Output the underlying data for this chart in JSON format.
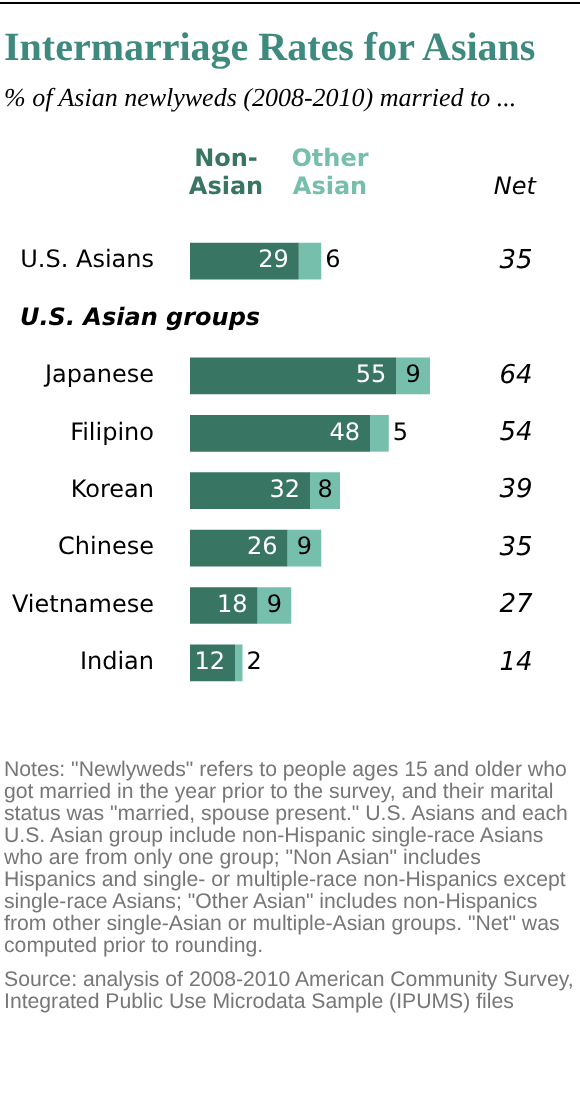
{
  "chart_data": {
    "type": "bar",
    "orientation": "horizontal",
    "stacked": true,
    "title": "Intermarriage Rates for Asians",
    "subtitle": "% of Asian newlyweds (2008-2010) married to ...",
    "categories": [
      "U.S. Asians",
      null,
      "Japanese",
      "Filipino",
      "Korean",
      "Chinese",
      "Vietnamese",
      "Indian"
    ],
    "series": [
      {
        "name": "Non-Asian",
        "color": "#387663",
        "values": [
          29,
          null,
          55,
          48,
          32,
          26,
          18,
          12
        ]
      },
      {
        "name": "Other Asian",
        "color": "#76bfad",
        "values": [
          6,
          null,
          9,
          5,
          8,
          9,
          9,
          2
        ]
      }
    ],
    "tick_labels": "y",
    "data_labels": true,
    "legend": "top left",
    "annotations": [
      "Net",
      "U.S. Asian groups",
      "35",
      "64",
      "54",
      "39",
      "35",
      "27",
      "14",
      "Notes: \"Newlyweds\" refers to people ages 15 and older who got married in the year prior to the survey, and their marital status was \"married, spouse present.\" U.S. Asians and each U.S. Asian group include non-Hispanic single-race Asians who are from only one group; \"Non Asian\" includes Hispanics and single- or multiple-race non-Hispanics except single-race Asians; \"Other Asian\" includes non-Hispanics from other single-Asian or multiple-Asian groups. \"Net\" was computed prior to rounding.",
      "Source: analysis of 2008-2010 American Community Survey, Integrated Public Use Microdata Sample (IPUMS) files"
    ]
  }
}
